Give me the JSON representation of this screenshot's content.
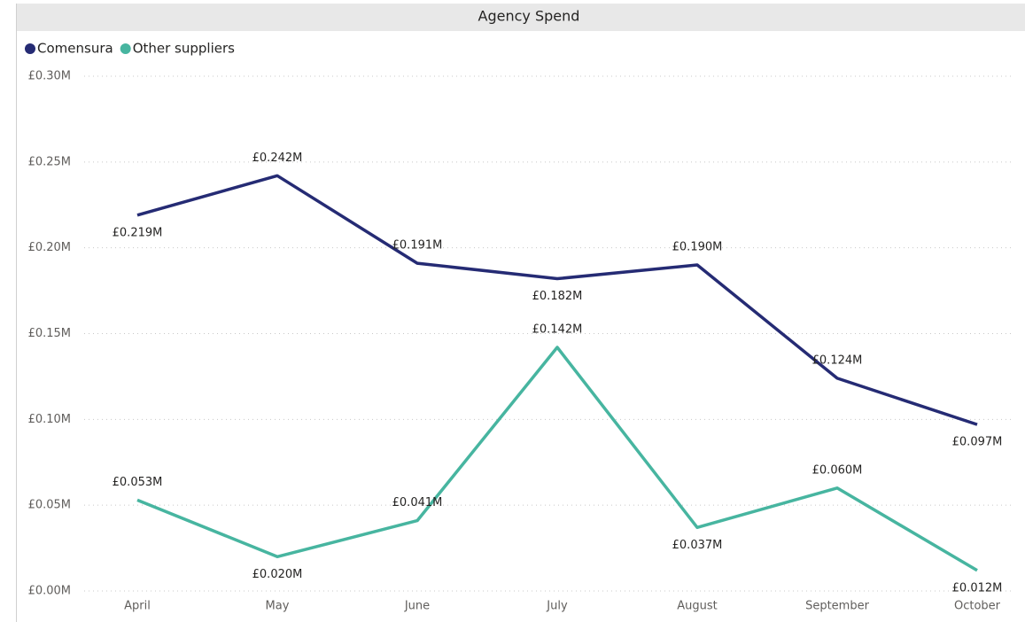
{
  "chart_data": {
    "type": "line",
    "title": "Agency Spend",
    "categories": [
      "April",
      "May",
      "June",
      "July",
      "August",
      "September",
      "October"
    ],
    "series": [
      {
        "name": "Comensura",
        "color": "#252b74",
        "values": [
          0.219,
          0.242,
          0.191,
          0.182,
          0.19,
          0.124,
          0.097
        ],
        "value_labels": [
          "£0.219M",
          "£0.242M",
          "£0.191M",
          "£0.182M",
          "£0.190M",
          "£0.124M",
          "£0.097M"
        ]
      },
      {
        "name": "Other suppliers",
        "color": "#47b5a0",
        "values": [
          0.053,
          0.02,
          0.041,
          0.142,
          0.037,
          0.06,
          0.012
        ],
        "value_labels": [
          "£0.053M",
          "£0.020M",
          "£0.041M",
          "£0.142M",
          "£0.037M",
          "£0.060M",
          "£0.012M"
        ]
      }
    ],
    "ylim": [
      0,
      0.3
    ],
    "yticks": [
      {
        "value": 0,
        "label": "£0.00M"
      },
      {
        "value": 0.05,
        "label": "£0.05M"
      },
      {
        "value": 0.1,
        "label": "£0.10M"
      },
      {
        "value": 0.15,
        "label": "£0.15M"
      },
      {
        "value": 0.2,
        "label": "£0.20M"
      },
      {
        "value": 0.25,
        "label": "£0.25M"
      },
      {
        "value": 0.3,
        "label": "£0.30M"
      }
    ],
    "grid": true,
    "legend": "top-left"
  }
}
